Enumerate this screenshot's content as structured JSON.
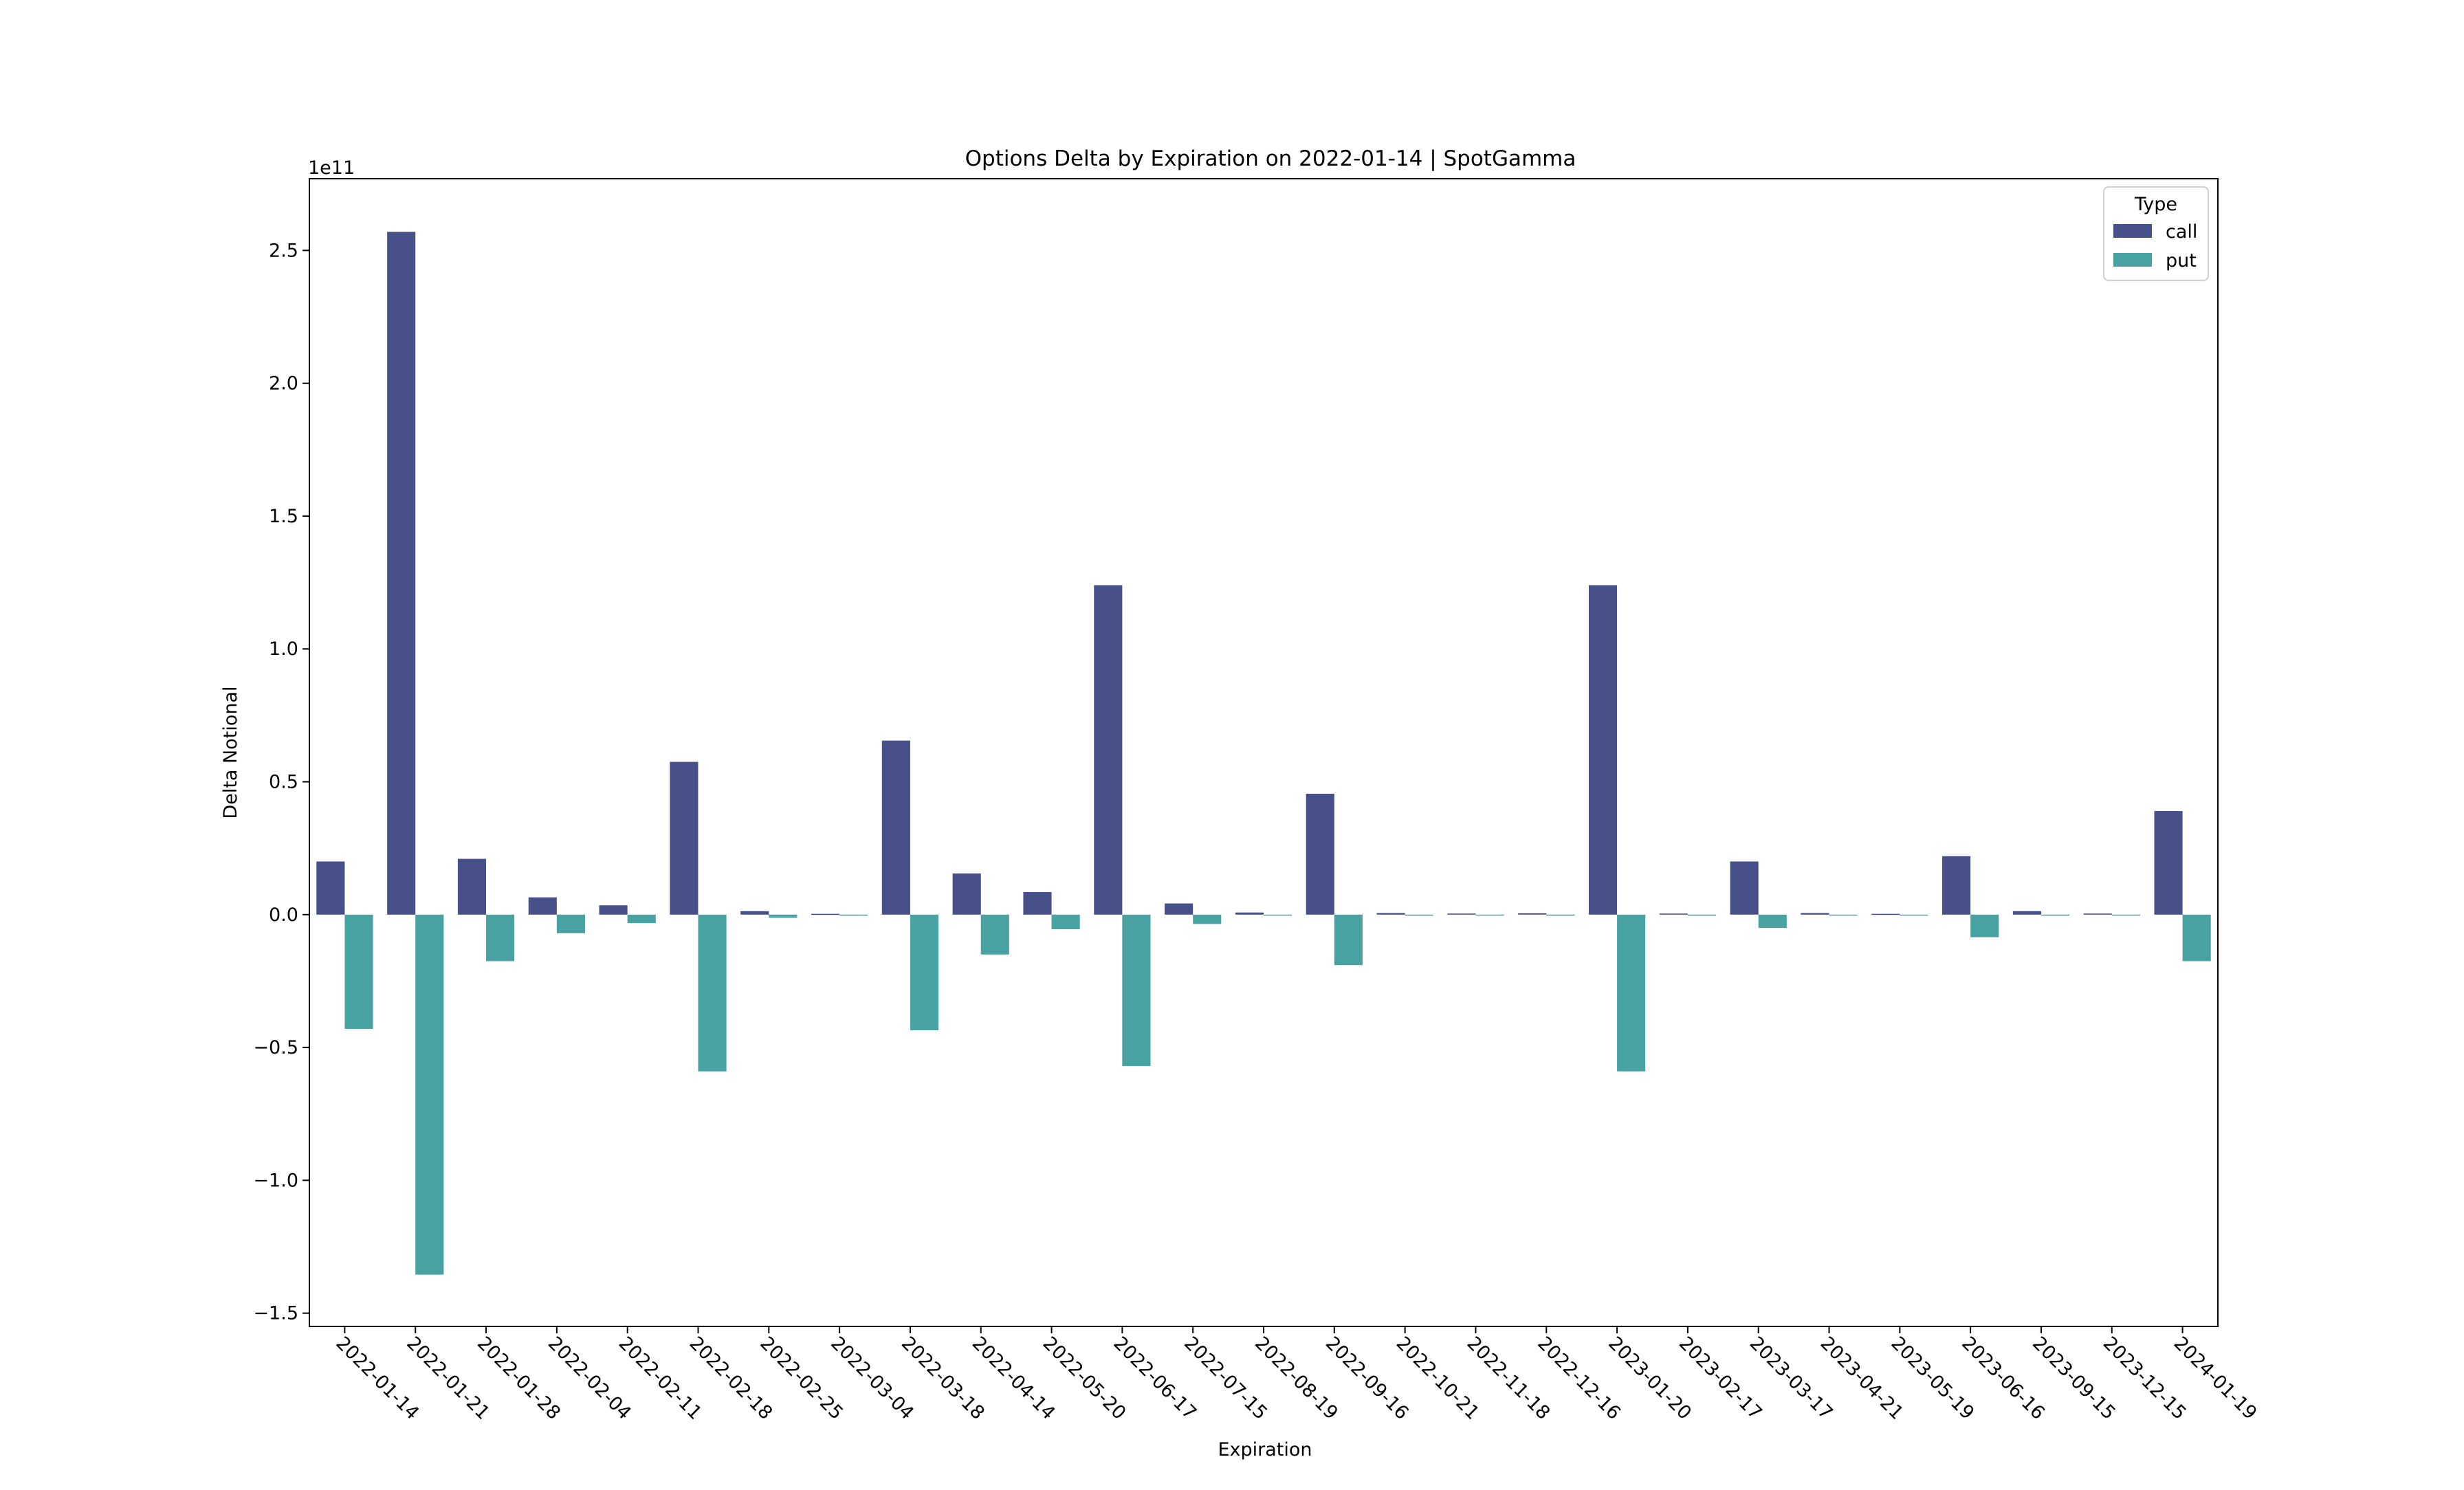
{
  "chart_data": {
    "type": "bar",
    "title": "Options Delta by Expiration on 2022-01-14 | SpotGamma",
    "xlabel": "Expiration",
    "ylabel": "Delta Notional",
    "offset_label": "1e11",
    "y_ticks": [
      -1.5,
      -1.0,
      -0.5,
      0.0,
      0.5,
      1.0,
      1.5,
      2.0,
      2.5
    ],
    "y_tick_labels": [
      "−1.5",
      "−1.0",
      "−0.5",
      "0.0",
      "0.5",
      "1.0",
      "1.5",
      "2.0",
      "2.5"
    ],
    "ylim": [
      -1.55,
      2.77
    ],
    "categories": [
      "2022-01-14",
      "2022-01-21",
      "2022-01-28",
      "2022-02-04",
      "2022-02-11",
      "2022-02-18",
      "2022-02-25",
      "2022-03-04",
      "2022-03-18",
      "2022-04-14",
      "2022-05-20",
      "2022-06-17",
      "2022-07-15",
      "2022-08-19",
      "2022-09-16",
      "2022-10-21",
      "2022-11-18",
      "2022-12-16",
      "2023-01-20",
      "2023-02-17",
      "2023-03-17",
      "2023-04-21",
      "2023-05-19",
      "2023-06-16",
      "2023-09-15",
      "2023-12-15",
      "2024-01-19"
    ],
    "legend": {
      "title": "Type",
      "position": "top-right"
    },
    "series": [
      {
        "name": "call",
        "color": "#48508a",
        "values": [
          0.2,
          2.57,
          0.21,
          0.065,
          0.035,
          0.575,
          0.013,
          0.003,
          0.655,
          0.155,
          0.085,
          1.24,
          0.042,
          0.008,
          0.455,
          0.006,
          0.004,
          0.005,
          1.24,
          0.004,
          0.2,
          0.006,
          0.003,
          0.22,
          0.013,
          0.004,
          0.39
        ]
      },
      {
        "name": "put",
        "color": "#48a2a2",
        "values": [
          -0.43,
          -1.355,
          -0.175,
          -0.07,
          -0.032,
          -0.59,
          -0.012,
          -0.004,
          -0.435,
          -0.15,
          -0.055,
          -0.57,
          -0.035,
          -0.002,
          -0.19,
          -0.004,
          -0.003,
          -0.004,
          -0.59,
          -0.004,
          -0.05,
          -0.002,
          -0.001,
          -0.085,
          -0.004,
          -0.003,
          -0.175
        ]
      }
    ]
  }
}
